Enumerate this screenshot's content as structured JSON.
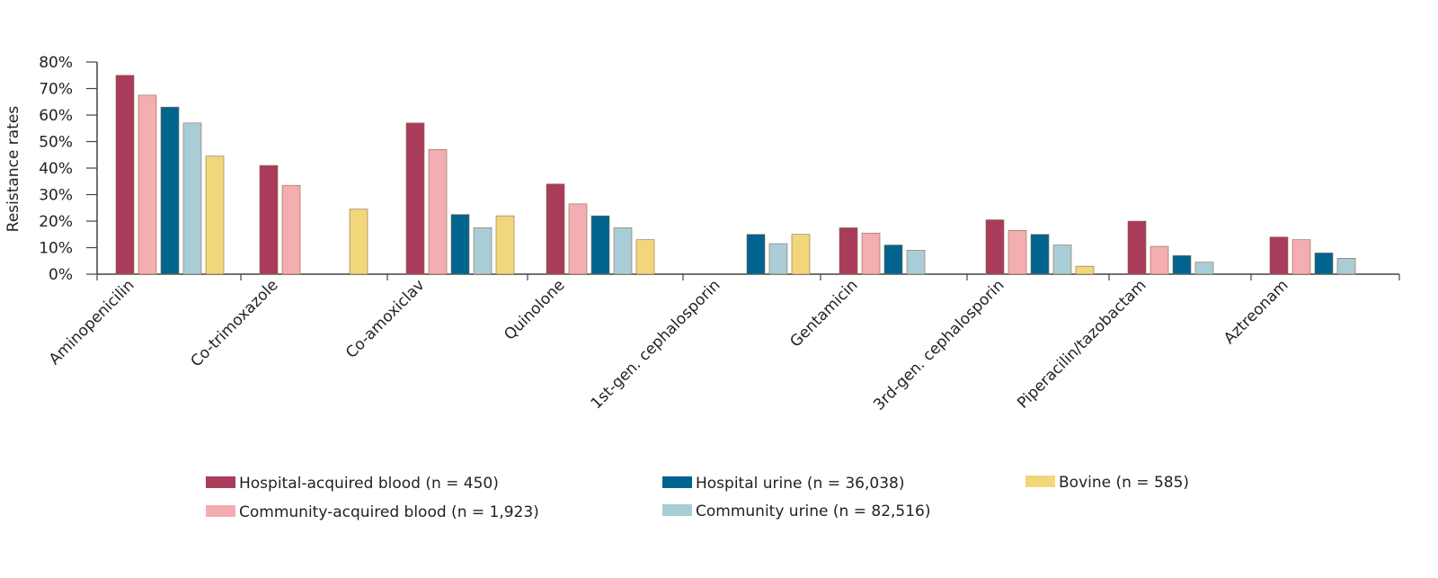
{
  "chart_data": {
    "type": "bar",
    "title": "",
    "xlabel": "",
    "ylabel": "Resistance rates",
    "ylim": [
      0,
      80
    ],
    "yticks": [
      "0%",
      "10%",
      "20%",
      "30%",
      "40%",
      "50%",
      "60%",
      "70%",
      "80%"
    ],
    "grid": false,
    "legend_position": "bottom",
    "categories": [
      "Aminopenicilin",
      "Co-trimoxazole",
      "Co-amoxiclav",
      "Quinolone",
      "1st-gen. cephalosporin",
      "Gentamicin",
      "3rd-gen. cephalosporin",
      "Piperacilin/tazobactam",
      "Aztreonam"
    ],
    "series": [
      {
        "name": "Hospital-acquired blood (n = 450)",
        "color": "#a83c5a",
        "values": [
          75,
          41,
          57,
          34,
          null,
          17.5,
          20.5,
          20,
          14
        ]
      },
      {
        "name": "Community-acquired blood (n = 1,923)",
        "color": "#f4adb0",
        "values": [
          67.5,
          33.5,
          47,
          26.5,
          null,
          15.5,
          16.5,
          10.5,
          13
        ]
      },
      {
        "name": "Hospital urine (n = 36,038)",
        "color": "#00648f",
        "values": [
          63,
          null,
          22.5,
          22,
          15,
          11,
          15,
          7,
          8
        ]
      },
      {
        "name": "Community urine (n = 82,516)",
        "color": "#a8cdd6",
        "values": [
          57,
          null,
          17.5,
          17.5,
          11.5,
          9,
          11,
          4.5,
          6
        ]
      },
      {
        "name": "Bovine (n = 585)",
        "color": "#f2d67a",
        "values": [
          44.5,
          24.5,
          22,
          13,
          15,
          null,
          3,
          null,
          null
        ]
      }
    ]
  }
}
